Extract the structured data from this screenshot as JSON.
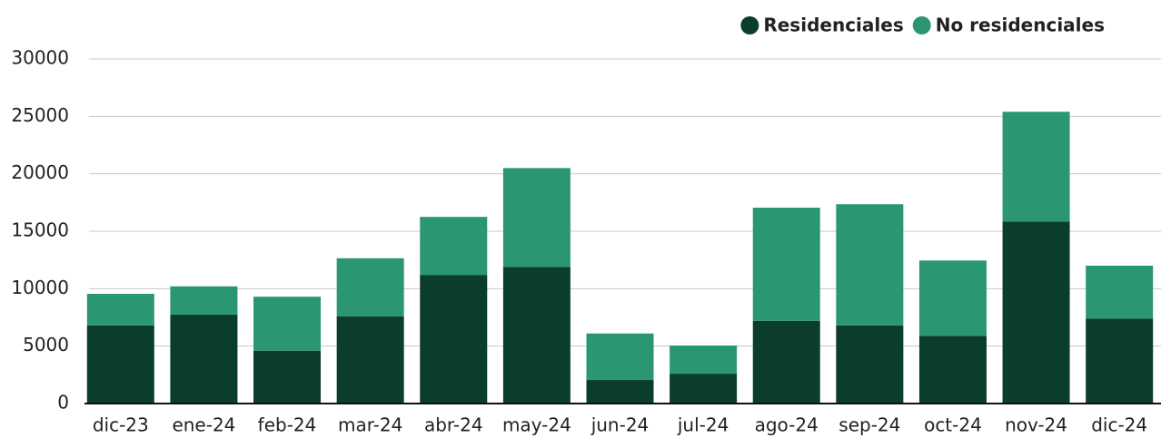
{
  "chart_data": {
    "type": "stacked_bar",
    "categories": [
      "dic-23",
      "ene-24",
      "feb-24",
      "mar-24",
      "abr-24",
      "may-24",
      "jun-24",
      "jul-24",
      "ago-24",
      "sep-24",
      "oct-24",
      "nov-24",
      "dic-24"
    ],
    "series": [
      {
        "name": "Residenciales",
        "color": "#0a3d2e",
        "values": [
          6800,
          7750,
          4600,
          7600,
          11200,
          11900,
          2050,
          2600,
          7200,
          6800,
          5900,
          15850,
          7400
        ]
      },
      {
        "name": "No residenciales",
        "color": "#2a9673",
        "values": [
          2750,
          2450,
          4700,
          5050,
          5050,
          8600,
          4050,
          2450,
          9850,
          10550,
          6550,
          9550,
          4600
        ]
      }
    ],
    "ylim": [
      0,
      30000
    ],
    "yticks": [
      0,
      5000,
      10000,
      15000,
      20000,
      25000,
      30000
    ],
    "grid": true,
    "legend": "top-right"
  }
}
